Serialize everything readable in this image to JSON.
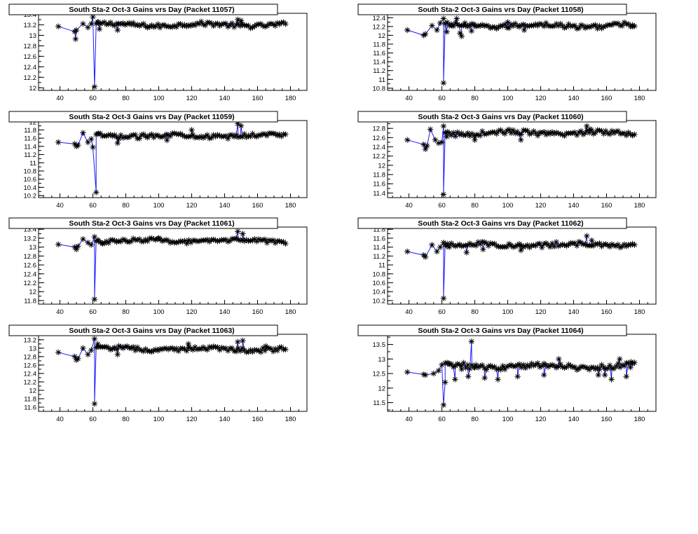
{
  "chart_data": [
    {
      "type": "line",
      "title": "South Sta-2 Oct-3 Gains vrs Day (Packet 11057)",
      "xticks": [
        "40",
        "60",
        "80",
        "100",
        "120",
        "140",
        "160",
        "180"
      ],
      "yticks": [
        "12",
        "12.2",
        "12.4",
        "12.6",
        "12.8",
        "13",
        "13.2",
        "13.4"
      ],
      "xlim": [
        27,
        190
      ],
      "ylim": [
        11.95,
        13.42
      ],
      "baseline": 13.2,
      "noise": 0.04,
      "spike_min": 12.02,
      "spike_day": 61,
      "early": [
        [
          39,
          13.17
        ],
        [
          49,
          13.07
        ],
        [
          49.5,
          12.93
        ],
        [
          50,
          13.1
        ],
        [
          54,
          13.22
        ],
        [
          57,
          13.15
        ],
        [
          59,
          13.22
        ],
        [
          60,
          13.35
        ],
        [
          63,
          13.25
        ],
        [
          64,
          13.12
        ]
      ],
      "outliers": [
        [
          75,
          13.1
        ],
        [
          148,
          13.3
        ],
        [
          150,
          13.28
        ]
      ]
    },
    {
      "type": "line",
      "title": "South Sta-2 Oct-3 Gains vrs Day (Packet 11058)",
      "xticks": [
        "40",
        "60",
        "80",
        "100",
        "120",
        "140",
        "160",
        "180"
      ],
      "yticks": [
        "10.8",
        "11",
        "11.2",
        "11.4",
        "11.6",
        "11.8",
        "12",
        "12.2",
        "12.4"
      ],
      "xlim": [
        27,
        190
      ],
      "ylim": [
        10.75,
        12.5
      ],
      "baseline": 12.22,
      "noise": 0.05,
      "spike_min": 10.92,
      "spike_day": 61,
      "early": [
        [
          39,
          12.12
        ],
        [
          49,
          12.0
        ],
        [
          50,
          12.03
        ],
        [
          54,
          12.22
        ],
        [
          57,
          12.12
        ],
        [
          59,
          12.28
        ],
        [
          61,
          12.38
        ],
        [
          63,
          12.08
        ],
        [
          66,
          12.22
        ],
        [
          69,
          12.38
        ],
        [
          71,
          12.05
        ],
        [
          72,
          11.98
        ],
        [
          74,
          12.28
        ],
        [
          78,
          12.1
        ],
        [
          80,
          12.22
        ]
      ],
      "outliers": [
        [
          100,
          12.3
        ],
        [
          110,
          12.12
        ],
        [
          176,
          12.2
        ]
      ]
    },
    {
      "type": "line",
      "title": "South Sta-2 Oct-3 Gains vrs Day (Packet 11059)",
      "xticks": [
        "40",
        "60",
        "80",
        "100",
        "120",
        "140",
        "160",
        "180"
      ],
      "yticks": [
        "10.2",
        "10.4",
        "10.6",
        "10.8",
        "11",
        "11.2",
        "11.4",
        "11.6",
        "11.8",
        "12"
      ],
      "xlim": [
        27,
        190
      ],
      "ylim": [
        10.15,
        12.03
      ],
      "baseline": 11.66,
      "noise": 0.05,
      "spike_min": 10.28,
      "spike_day": 62,
      "early": [
        [
          39,
          11.5
        ],
        [
          49,
          11.46
        ],
        [
          50,
          11.4
        ],
        [
          51,
          11.43
        ],
        [
          54,
          11.73
        ],
        [
          57,
          11.5
        ],
        [
          59,
          11.58
        ],
        [
          60,
          11.38
        ],
        [
          63,
          11.7
        ],
        [
          75,
          11.48
        ]
      ],
      "outliers": [
        [
          105,
          11.55
        ],
        [
          120,
          11.8
        ],
        [
          148,
          11.95
        ],
        [
          150,
          11.9
        ]
      ]
    },
    {
      "type": "line",
      "title": "South Sta-2 Oct-3 Gains vrs Day (Packet 11060)",
      "xticks": [
        "40",
        "60",
        "80",
        "100",
        "120",
        "140",
        "160",
        "180"
      ],
      "yticks": [
        "11.4",
        "11.6",
        "11.8",
        "12",
        "12.2",
        "12.4",
        "12.6",
        "12.8"
      ],
      "xlim": [
        27,
        190
      ],
      "ylim": [
        11.3,
        12.97
      ],
      "baseline": 12.7,
      "noise": 0.05,
      "spike_min": 11.37,
      "spike_day": 61,
      "early": [
        [
          39,
          12.55
        ],
        [
          49,
          12.45
        ],
        [
          50,
          12.35
        ],
        [
          51,
          12.42
        ],
        [
          53,
          12.78
        ],
        [
          56,
          12.55
        ],
        [
          58,
          12.48
        ],
        [
          60,
          12.5
        ],
        [
          61,
          12.85
        ],
        [
          63,
          12.62
        ],
        [
          80,
          12.55
        ]
      ],
      "outliers": [
        [
          108,
          12.55
        ],
        [
          148,
          12.85
        ],
        [
          150,
          12.78
        ]
      ]
    },
    {
      "type": "line",
      "title": "South Sta-2 Oct-3 Gains vrs Day (Packet 11061)",
      "xticks": [
        "40",
        "60",
        "80",
        "100",
        "120",
        "140",
        "160",
        "180"
      ],
      "yticks": [
        "11.8",
        "12",
        "12.2",
        "12.4",
        "12.6",
        "12.8",
        "13",
        "13.2",
        "13.4"
      ],
      "xlim": [
        27,
        190
      ],
      "ylim": [
        11.72,
        13.45
      ],
      "baseline": 13.14,
      "noise": 0.04,
      "spike_min": 11.83,
      "spike_day": 61,
      "early": [
        [
          39,
          13.06
        ],
        [
          49,
          13.0
        ],
        [
          50,
          12.95
        ],
        [
          51,
          13.02
        ],
        [
          54,
          13.18
        ],
        [
          57,
          13.1
        ],
        [
          59,
          13.05
        ],
        [
          61,
          13.23
        ],
        [
          63,
          13.15
        ],
        [
          66,
          13.08
        ]
      ],
      "outliers": [
        [
          100,
          13.2
        ],
        [
          148,
          13.35
        ],
        [
          151,
          13.3
        ]
      ]
    },
    {
      "type": "line",
      "title": "South Sta-2 Oct-3 Gains vrs Day (Packet 11062)",
      "xticks": [
        "40",
        "60",
        "80",
        "100",
        "120",
        "140",
        "160",
        "180"
      ],
      "yticks": [
        "10.2",
        "10.4",
        "10.6",
        "10.8",
        "11",
        "11.2",
        "11.4",
        "11.6",
        "11.8"
      ],
      "xlim": [
        27,
        190
      ],
      "ylim": [
        10.12,
        11.85
      ],
      "baseline": 11.45,
      "noise": 0.05,
      "spike_min": 10.25,
      "spike_day": 61,
      "early": [
        [
          39,
          11.3
        ],
        [
          49,
          11.22
        ],
        [
          50,
          11.18
        ],
        [
          54,
          11.45
        ],
        [
          57,
          11.3
        ],
        [
          59,
          11.4
        ],
        [
          61,
          11.5
        ],
        [
          63,
          11.42
        ],
        [
          75,
          11.28
        ],
        [
          85,
          11.35
        ]
      ],
      "outliers": [
        [
          108,
          11.33
        ],
        [
          148,
          11.65
        ],
        [
          151,
          11.55
        ]
      ]
    },
    {
      "type": "line",
      "title": "South Sta-2 Oct-3 Gains vrs Day (Packet 11063)",
      "xticks": [
        "40",
        "60",
        "80",
        "100",
        "120",
        "140",
        "160",
        "180"
      ],
      "yticks": [
        "11.6",
        "11.8",
        "12",
        "12.2",
        "12.4",
        "12.6",
        "12.8",
        "13",
        "13.2"
      ],
      "xlim": [
        27,
        190
      ],
      "ylim": [
        11.5,
        13.33
      ],
      "baseline": 12.98,
      "noise": 0.05,
      "spike_min": 11.68,
      "spike_day": 61,
      "early": [
        [
          39,
          12.9
        ],
        [
          49,
          12.8
        ],
        [
          50,
          12.72
        ],
        [
          51,
          12.75
        ],
        [
          54,
          13.0
        ],
        [
          57,
          12.85
        ],
        [
          59,
          12.95
        ],
        [
          61,
          13.22
        ],
        [
          63,
          13.1
        ],
        [
          75,
          12.85
        ]
      ],
      "outliers": [
        [
          118,
          13.1
        ],
        [
          148,
          13.15
        ],
        [
          151,
          13.18
        ],
        [
          165,
          13.05
        ]
      ]
    },
    {
      "type": "line",
      "title": "South Sta-2 Oct-3 Gains vrs Day (Packet 11064)",
      "xticks": [
        "40",
        "60",
        "80",
        "100",
        "120",
        "140",
        "160",
        "180"
      ],
      "yticks": [
        "11.5",
        "12",
        "12.5",
        "13",
        "13.5"
      ],
      "xlim": [
        27,
        190
      ],
      "ylim": [
        11.2,
        13.85
      ],
      "baseline": 12.75,
      "noise": 0.09,
      "spike_min": 11.42,
      "spike_day": 61,
      "early": [
        [
          39,
          12.55
        ],
        [
          49,
          12.47
        ],
        [
          50,
          12.45
        ],
        [
          55,
          12.5
        ],
        [
          58,
          12.6
        ],
        [
          60,
          12.8
        ],
        [
          62,
          12.2
        ],
        [
          64,
          12.85
        ],
        [
          68,
          12.3
        ],
        [
          72,
          12.65
        ],
        [
          76,
          12.4
        ],
        [
          78,
          13.6
        ],
        [
          80,
          12.7
        ],
        [
          86,
          12.35
        ],
        [
          94,
          12.3
        ]
      ],
      "outliers": [
        [
          106,
          12.4
        ],
        [
          122,
          12.45
        ],
        [
          131,
          13.0
        ],
        [
          155,
          12.45
        ],
        [
          159,
          12.45
        ],
        [
          163,
          12.3
        ],
        [
          168,
          13.0
        ],
        [
          172,
          12.4
        ],
        [
          175,
          12.9
        ]
      ]
    }
  ]
}
